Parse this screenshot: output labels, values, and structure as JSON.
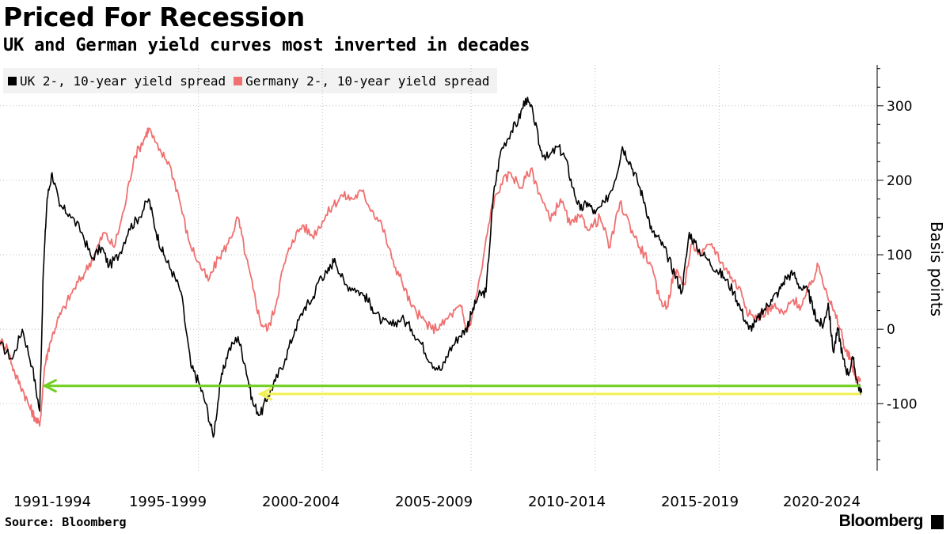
{
  "header": {
    "title": "Priced For Recession",
    "subtitle": "UK and German yield curves most inverted in decades"
  },
  "footer": {
    "source": "Source: Bloomberg",
    "brand": "Bloomberg"
  },
  "chart_data": {
    "type": "line",
    "title": "Priced For Recession",
    "subtitle": "UK and German yield curves most inverted in decades",
    "ylabel": "Basis points",
    "ylim": [
      -190,
      355
    ],
    "yticks": [
      300,
      200,
      100,
      0,
      -100
    ],
    "xlim": [
      1990.0,
      2024.8
    ],
    "x_tick_labels": [
      "1991-1994",
      "1995-1999",
      "2000-2004",
      "2005-2009",
      "2010-2014",
      "2015-2019",
      "2020-2024"
    ],
    "grid": "vertical dotted",
    "legend_position": "top-left",
    "series": [
      {
        "name": "UK 2-, 10-year yield spread",
        "color": "#000000",
        "points": [
          [
            1990.0,
            -20
          ],
          [
            1990.5,
            -40
          ],
          [
            1990.9,
            0
          ],
          [
            1991.3,
            -50
          ],
          [
            1991.6,
            -110
          ],
          [
            1991.75,
            80
          ],
          [
            1991.9,
            175
          ],
          [
            1992.1,
            210
          ],
          [
            1992.4,
            165
          ],
          [
            1992.8,
            155
          ],
          [
            1993.3,
            130
          ],
          [
            1993.7,
            95
          ],
          [
            1994.1,
            110
          ],
          [
            1994.4,
            85
          ],
          [
            1994.8,
            100
          ],
          [
            1995.2,
            135
          ],
          [
            1995.6,
            150
          ],
          [
            1996.0,
            175
          ],
          [
            1996.3,
            130
          ],
          [
            1996.6,
            100
          ],
          [
            1996.9,
            80
          ],
          [
            1997.3,
            50
          ],
          [
            1997.7,
            -50
          ],
          [
            1998.0,
            -70
          ],
          [
            1998.3,
            -100
          ],
          [
            1998.6,
            -145
          ],
          [
            1998.9,
            -70
          ],
          [
            1999.2,
            -30
          ],
          [
            1999.6,
            -10
          ],
          [
            1999.9,
            -50
          ],
          [
            2000.2,
            -100
          ],
          [
            2000.5,
            -115
          ],
          [
            2000.8,
            -90
          ],
          [
            2001.1,
            -70
          ],
          [
            2001.5,
            -40
          ],
          [
            2001.9,
            0
          ],
          [
            2002.3,
            30
          ],
          [
            2002.6,
            40
          ],
          [
            2002.9,
            70
          ],
          [
            2003.2,
            75
          ],
          [
            2003.5,
            95
          ],
          [
            2003.9,
            60
          ],
          [
            2004.3,
            55
          ],
          [
            2004.7,
            45
          ],
          [
            2005.0,
            30
          ],
          [
            2005.4,
            10
          ],
          [
            2005.8,
            5
          ],
          [
            2006.2,
            15
          ],
          [
            2006.6,
            0
          ],
          [
            2007.0,
            -20
          ],
          [
            2007.4,
            -45
          ],
          [
            2007.8,
            -55
          ],
          [
            2008.1,
            -30
          ],
          [
            2008.5,
            -10
          ],
          [
            2008.8,
            0
          ],
          [
            2009.0,
            20
          ],
          [
            2009.3,
            45
          ],
          [
            2009.6,
            50
          ],
          [
            2009.9,
            180
          ],
          [
            2010.2,
            240
          ],
          [
            2010.6,
            265
          ],
          [
            2010.9,
            280
          ],
          [
            2011.2,
            310
          ],
          [
            2011.5,
            290
          ],
          [
            2011.8,
            240
          ],
          [
            2012.1,
            230
          ],
          [
            2012.5,
            245
          ],
          [
            2012.8,
            230
          ],
          [
            2013.1,
            190
          ],
          [
            2013.4,
            160
          ],
          [
            2013.7,
            170
          ],
          [
            2014.0,
            155
          ],
          [
            2014.4,
            170
          ],
          [
            2014.8,
            200
          ],
          [
            2015.1,
            245
          ],
          [
            2015.4,
            225
          ],
          [
            2015.7,
            200
          ],
          [
            2016.0,
            170
          ],
          [
            2016.3,
            130
          ],
          [
            2016.6,
            120
          ],
          [
            2016.9,
            100
          ],
          [
            2017.2,
            75
          ],
          [
            2017.5,
            50
          ],
          [
            2017.8,
            130
          ],
          [
            2018.1,
            110
          ],
          [
            2018.5,
            95
          ],
          [
            2018.9,
            80
          ],
          [
            2019.2,
            70
          ],
          [
            2019.6,
            50
          ],
          [
            2019.9,
            25
          ],
          [
            2020.2,
            0
          ],
          [
            2020.5,
            10
          ],
          [
            2020.8,
            25
          ],
          [
            2021.1,
            40
          ],
          [
            2021.4,
            50
          ],
          [
            2021.7,
            70
          ],
          [
            2022.0,
            75
          ],
          [
            2022.3,
            55
          ],
          [
            2022.6,
            50
          ],
          [
            2022.8,
            25
          ],
          [
            2023.0,
            10
          ],
          [
            2023.2,
            5
          ],
          [
            2023.4,
            35
          ],
          [
            2023.6,
            -30
          ],
          [
            2023.8,
            0
          ],
          [
            2024.0,
            -40
          ],
          [
            2024.2,
            -60
          ],
          [
            2024.4,
            -40
          ],
          [
            2024.6,
            -75
          ],
          [
            2024.75,
            -85
          ]
        ]
      },
      {
        "name": "Germany 2-, 10-year yield spread",
        "color": "#f07070",
        "points": [
          [
            1990.0,
            -15
          ],
          [
            1990.3,
            -25
          ],
          [
            1990.6,
            -60
          ],
          [
            1990.9,
            -80
          ],
          [
            1991.2,
            -105
          ],
          [
            1991.4,
            -118
          ],
          [
            1991.6,
            -130
          ],
          [
            1991.8,
            -50
          ],
          [
            1992.0,
            -20
          ],
          [
            1992.3,
            10
          ],
          [
            1992.6,
            30
          ],
          [
            1993.0,
            55
          ],
          [
            1993.4,
            75
          ],
          [
            1993.8,
            100
          ],
          [
            1994.2,
            130
          ],
          [
            1994.6,
            110
          ],
          [
            1995.0,
            160
          ],
          [
            1995.4,
            230
          ],
          [
            1995.8,
            255
          ],
          [
            1996.0,
            270
          ],
          [
            1996.4,
            240
          ],
          [
            1996.8,
            225
          ],
          [
            1997.2,
            180
          ],
          [
            1997.6,
            120
          ],
          [
            1998.0,
            90
          ],
          [
            1998.4,
            65
          ],
          [
            1998.8,
            95
          ],
          [
            1999.2,
            115
          ],
          [
            1999.6,
            150
          ],
          [
            1999.9,
            100
          ],
          [
            2000.2,
            55
          ],
          [
            2000.5,
            10
          ],
          [
            2000.8,
            0
          ],
          [
            2001.1,
            30
          ],
          [
            2001.4,
            80
          ],
          [
            2001.8,
            120
          ],
          [
            2002.2,
            140
          ],
          [
            2002.6,
            125
          ],
          [
            2003.0,
            145
          ],
          [
            2003.4,
            165
          ],
          [
            2003.8,
            180
          ],
          [
            2004.2,
            175
          ],
          [
            2004.6,
            185
          ],
          [
            2005.0,
            160
          ],
          [
            2005.4,
            140
          ],
          [
            2005.8,
            95
          ],
          [
            2006.2,
            65
          ],
          [
            2006.6,
            30
          ],
          [
            2007.0,
            15
          ],
          [
            2007.4,
            0
          ],
          [
            2007.8,
            5
          ],
          [
            2008.2,
            20
          ],
          [
            2008.6,
            30
          ],
          [
            2008.8,
            0
          ],
          [
            2009.0,
            10
          ],
          [
            2009.4,
            75
          ],
          [
            2009.8,
            160
          ],
          [
            2010.2,
            195
          ],
          [
            2010.6,
            210
          ],
          [
            2011.0,
            190
          ],
          [
            2011.4,
            215
          ],
          [
            2011.8,
            180
          ],
          [
            2012.2,
            145
          ],
          [
            2012.6,
            175
          ],
          [
            2013.0,
            140
          ],
          [
            2013.4,
            150
          ],
          [
            2013.8,
            135
          ],
          [
            2014.2,
            150
          ],
          [
            2014.6,
            110
          ],
          [
            2015.0,
            170
          ],
          [
            2015.4,
            140
          ],
          [
            2015.8,
            110
          ],
          [
            2016.2,
            90
          ],
          [
            2016.6,
            40
          ],
          [
            2016.9,
            30
          ],
          [
            2017.2,
            80
          ],
          [
            2017.6,
            60
          ],
          [
            2017.9,
            115
          ],
          [
            2018.3,
            100
          ],
          [
            2018.7,
            115
          ],
          [
            2019.1,
            90
          ],
          [
            2019.5,
            70
          ],
          [
            2019.9,
            50
          ],
          [
            2020.2,
            20
          ],
          [
            2020.5,
            15
          ],
          [
            2020.9,
            25
          ],
          [
            2021.2,
            30
          ],
          [
            2021.6,
            20
          ],
          [
            2022.0,
            40
          ],
          [
            2022.3,
            30
          ],
          [
            2022.7,
            60
          ],
          [
            2023.0,
            85
          ],
          [
            2023.3,
            55
          ],
          [
            2023.6,
            25
          ],
          [
            2023.9,
            0
          ],
          [
            2024.1,
            -30
          ],
          [
            2024.3,
            -40
          ],
          [
            2024.5,
            -65
          ],
          [
            2024.7,
            -70
          ]
        ]
      }
    ],
    "annotations": [
      {
        "type": "arrow",
        "color": "#6fcf1f",
        "label": "",
        "y": -76,
        "x_from": 2024.7,
        "x_to": 1991.8
      },
      {
        "type": "arrow",
        "color": "#f0f050",
        "label": "",
        "y": -87,
        "x_from": 2024.7,
        "x_to": 2000.5
      }
    ]
  }
}
